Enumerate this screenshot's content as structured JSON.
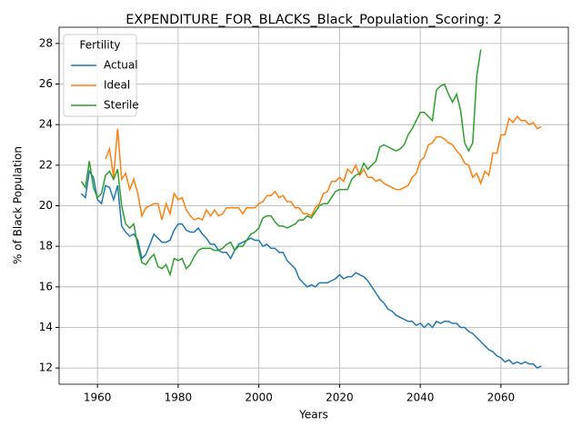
{
  "chart_data": {
    "type": "line",
    "title": "EXPENDITURE_FOR_BLACKS_Black_Population_Scoring: 2",
    "x_label": "Years",
    "y_label": "% of Black Population",
    "legend_title": "Fertility",
    "legend": "upper left",
    "grid": true,
    "x": [
      1956,
      1957,
      1958,
      1959,
      1960,
      1961,
      1962,
      1963,
      1964,
      1965,
      1966,
      1967,
      1968,
      1969,
      1970,
      1971,
      1972,
      1973,
      1974,
      1975,
      1976,
      1977,
      1978,
      1979,
      1980,
      1981,
      1982,
      1983,
      1984,
      1985,
      1986,
      1987,
      1988,
      1989,
      1990,
      1991,
      1992,
      1993,
      1994,
      1995,
      1996,
      1997,
      1998,
      1999,
      2000,
      2001,
      2002,
      2003,
      2004,
      2005,
      2006,
      2007,
      2008,
      2009,
      2010,
      2011,
      2012,
      2013,
      2014,
      2015,
      2016,
      2017,
      2018,
      2019,
      2020,
      2021,
      2022,
      2023,
      2024,
      2025,
      2026,
      2027,
      2028,
      2029,
      2030,
      2031,
      2032,
      2033,
      2034,
      2035,
      2036,
      2037,
      2038,
      2039,
      2040,
      2041,
      2042,
      2043,
      2044,
      2045,
      2046,
      2047,
      2048,
      2049,
      2050,
      2051,
      2052,
      2053,
      2054,
      2055,
      2056,
      2057,
      2058,
      2059,
      2060,
      2061,
      2062,
      2063,
      2064,
      2065,
      2066,
      2067,
      2068,
      2069,
      2070
    ],
    "series": [
      {
        "name": "Actual",
        "color": "#1f77b4",
        "values": [
          20.6,
          20.4,
          21.7,
          21.4,
          20.3,
          20.1,
          21.0,
          20.9,
          20.3,
          21.0,
          19.0,
          18.7,
          18.5,
          18.6,
          18.3,
          17.4,
          17.6,
          18.1,
          18.6,
          18.4,
          18.2,
          18.2,
          18.3,
          18.8,
          19.1,
          19.1,
          18.8,
          18.7,
          18.7,
          18.9,
          18.6,
          18.4,
          18.1,
          18.1,
          17.8,
          17.7,
          17.7,
          17.4,
          17.8,
          18.1,
          18.2,
          18.3,
          18.4,
          18.3,
          18.3,
          18.0,
          18.1,
          17.9,
          17.9,
          17.7,
          17.7,
          17.3,
          17.1,
          16.9,
          16.4,
          16.2,
          16.0,
          16.1,
          16.0,
          16.2,
          16.2,
          16.2,
          16.3,
          16.4,
          16.6,
          16.4,
          16.5,
          16.5,
          16.7,
          16.6,
          16.5,
          16.3,
          16.0,
          15.7,
          15.4,
          15.2,
          14.9,
          14.8,
          14.6,
          14.5,
          14.4,
          14.3,
          14.3,
          14.1,
          14.2,
          14.0,
          14.2,
          14.0,
          14.3,
          14.2,
          14.3,
          14.3,
          14.2,
          14.2,
          14.0,
          14.0,
          13.8,
          13.7,
          13.5,
          13.3,
          13.1,
          12.9,
          12.8,
          12.6,
          12.5,
          12.3,
          12.4,
          12.2,
          12.3,
          12.2,
          12.3,
          12.2,
          12.2,
          12.0,
          12.1
        ]
      },
      {
        "name": "Ideal",
        "color": "#ff7f0e",
        "values": [
          null,
          null,
          null,
          null,
          null,
          null,
          22.3,
          22.8,
          21.4,
          23.8,
          21.3,
          21.6,
          20.8,
          21.3,
          20.6,
          19.5,
          19.9,
          20.0,
          20.1,
          20.1,
          19.3,
          20.1,
          19.6,
          20.6,
          20.3,
          20.4,
          19.8,
          19.5,
          19.3,
          19.4,
          19.3,
          19.8,
          19.5,
          19.8,
          19.5,
          19.6,
          19.9,
          19.9,
          19.9,
          19.9,
          19.6,
          19.9,
          19.9,
          19.9,
          20.1,
          20.2,
          20.5,
          20.5,
          20.7,
          20.4,
          20.5,
          20.2,
          20.2,
          19.9,
          19.9,
          19.6,
          19.6,
          19.5,
          19.9,
          20.1,
          20.6,
          20.7,
          21.2,
          21.2,
          21.4,
          21.2,
          21.8,
          21.6,
          22.0,
          21.5,
          21.8,
          21.4,
          21.4,
          21.2,
          21.3,
          21.1,
          21.0,
          20.9,
          20.8,
          20.8,
          20.9,
          21.0,
          21.4,
          21.6,
          22.2,
          22.4,
          23.0,
          23.1,
          23.4,
          23.4,
          23.3,
          23.1,
          23.0,
          22.7,
          22.5,
          22.1,
          22.0,
          21.4,
          21.6,
          21.1,
          21.7,
          21.5,
          22.6,
          22.6,
          23.5,
          23.5,
          24.3,
          24.1,
          24.4,
          24.2,
          24.2,
          24.0,
          24.1,
          23.8,
          23.9
        ]
      },
      {
        "name": "Sterile",
        "color": "#2ca02c",
        "values": [
          21.2,
          20.9,
          22.2,
          20.9,
          20.4,
          20.6,
          21.5,
          21.7,
          21.3,
          21.8,
          20.0,
          19.1,
          18.9,
          19.1,
          18.0,
          17.2,
          17.1,
          17.4,
          17.6,
          17.0,
          16.9,
          17.1,
          16.6,
          17.4,
          17.3,
          17.4,
          16.9,
          17.1,
          17.5,
          17.8,
          17.9,
          17.9,
          17.9,
          17.8,
          17.8,
          17.9,
          18.1,
          18.2,
          17.8,
          18.0,
          18.0,
          18.3,
          18.6,
          18.7,
          18.9,
          19.4,
          19.5,
          19.5,
          19.2,
          19.0,
          19.0,
          18.9,
          19.0,
          19.1,
          19.3,
          19.3,
          19.5,
          19.4,
          19.7,
          20.0,
          20.1,
          20.1,
          20.4,
          20.7,
          20.8,
          20.8,
          20.8,
          21.3,
          21.5,
          21.6,
          22.1,
          21.8,
          22.0,
          22.2,
          22.9,
          23.0,
          22.9,
          22.8,
          22.7,
          22.8,
          23.0,
          23.5,
          23.8,
          24.2,
          24.6,
          24.6,
          24.4,
          24.2,
          25.7,
          25.9,
          26.0,
          25.5,
          25.1,
          25.5,
          24.7,
          23.1,
          22.7,
          23.1,
          26.4,
          27.7,
          null,
          null,
          null,
          null,
          null,
          null,
          null,
          null,
          null,
          null,
          null,
          null,
          null,
          null,
          null
        ]
      }
    ],
    "xlim": [
      1950.5,
      2076.7
    ],
    "xticks": [
      1960,
      1980,
      2000,
      2020,
      2040,
      2060
    ],
    "ylim": [
      11.2,
      28.8
    ],
    "yticks": [
      12,
      14,
      16,
      18,
      20,
      22,
      24,
      26,
      28
    ]
  }
}
